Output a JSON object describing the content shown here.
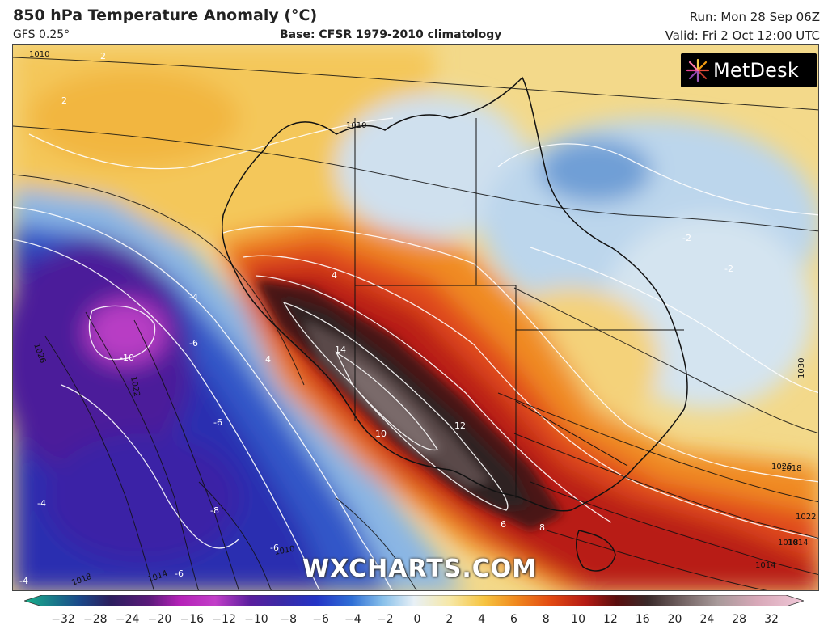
{
  "header": {
    "title": "850 hPa Temperature Anomaly (°C)",
    "model": "GFS 0.25°",
    "base": "Base: CFSR 1979-2010 climatology",
    "run": "Run: Mon 28 Sep 06Z",
    "valid": "Valid: Fri 2 Oct 12:00 UTC"
  },
  "logo": {
    "text": "MetDesk",
    "icon": "metdesk-starburst-icon"
  },
  "watermark": "WXCHARTS.COM",
  "colorbar": {
    "ticks": [
      "−32",
      "−28",
      "−24",
      "−20",
      "−16",
      "−12",
      "−10",
      "−8",
      "−6",
      "−4",
      "−2",
      "0",
      "2",
      "4",
      "6",
      "8",
      "10",
      "12",
      "16",
      "20",
      "24",
      "28",
      "32"
    ],
    "colors": [
      "#18b08a",
      "#1a4a8a",
      "#2b1f5e",
      "#5a1a7a",
      "#b522b8",
      "#c23ec8",
      "#5a1e9e",
      "#3a2aa6",
      "#2434c6",
      "#2f6fd6",
      "#88c0ea",
      "#e8f0f6",
      "#f6e8a8",
      "#f6c440",
      "#f08a1e",
      "#e24a12",
      "#b51a14",
      "#5a0e0e",
      "#3a2a2a",
      "#7a6a6a",
      "#a89a9a",
      "#d8a8b8",
      "#f0c8d8"
    ]
  },
  "map_labels": {
    "anomaly": [
      "14",
      "10",
      "12",
      "-10",
      "-8",
      "-6",
      "-6",
      "-4",
      "-6",
      "-6",
      "4",
      "4",
      "-2",
      "2",
      "2",
      "6",
      "8",
      "-4",
      "-2",
      "-4"
    ],
    "isobars": [
      "1010",
      "1026",
      "1022",
      "1018",
      "1014",
      "1030",
      "1026",
      "1022",
      "1018",
      "1014",
      "1010",
      "1018",
      "1014",
      "1010"
    ]
  }
}
